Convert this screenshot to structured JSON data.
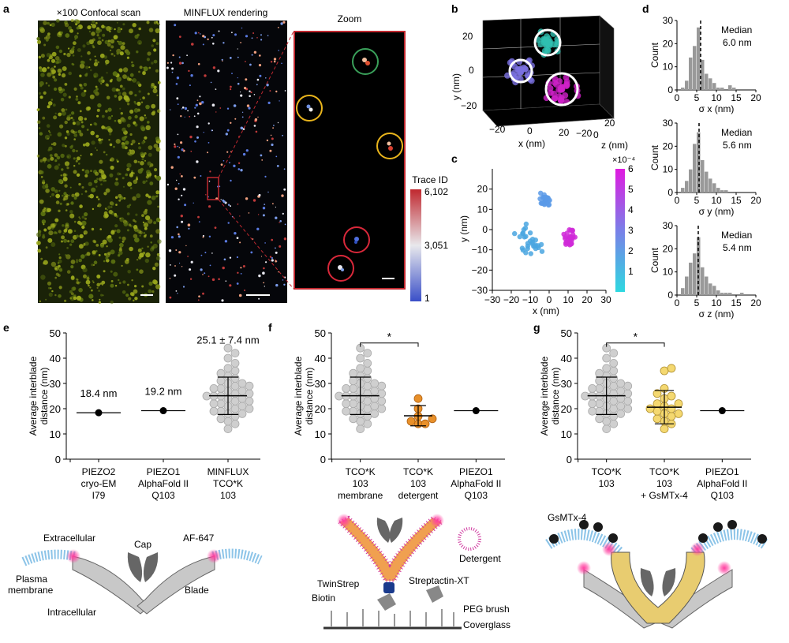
{
  "panel_letters": {
    "a": "a",
    "b": "b",
    "c": "c",
    "d": "d",
    "e": "e",
    "f": "f",
    "g": "g"
  },
  "panel_a": {
    "confocal_title": "×100 Confocal scan",
    "minflux_title": "MINFLUX rendering",
    "zoom_title": "Zoom",
    "colorbar_title": "Trace ID",
    "colorbar_ticks": [
      "6,102",
      "3,051",
      "1"
    ],
    "colors": {
      "confocal_bg": "#1a2208",
      "confocal_spot": "#9aa81c",
      "zoom_border": "#c0282f",
      "circle_green": "#3aa05a",
      "circle_yellow": "#e8b41c",
      "circle_red": "#d8283a"
    }
  },
  "panel_b": {
    "chart_data": {
      "type": "scatter",
      "title": "",
      "xlabel": "x (nm)",
      "ylabel": "y (nm)",
      "zlabel": "z (nm)",
      "x_ticks": [
        "−20",
        "0",
        "20"
      ],
      "y_ticks": [
        "20",
        "0",
        "−20"
      ],
      "z_ticks": [
        "20",
        "0",
        "−20"
      ],
      "clusters": [
        {
          "color": "#2fbfb0",
          "center": [
            5,
            15
          ]
        },
        {
          "color": "#7a70e0",
          "center": [
            -12,
            2
          ]
        },
        {
          "color": "#d020c8",
          "center": [
            10,
            -10
          ]
        }
      ]
    }
  },
  "panel_c": {
    "chart_data": {
      "type": "scatter",
      "xlabel": "x (nm)",
      "ylabel": "y (nm)",
      "xlim": [
        -30,
        30
      ],
      "ylim": [
        -30,
        30
      ],
      "x_ticks": [
        "−30",
        "−20",
        "−10",
        "0",
        "10",
        "20",
        "30"
      ],
      "y_ticks": [
        "20",
        "10",
        "0",
        "−10",
        "−20",
        "−30"
      ],
      "colorbar_exponent": "×10⁻⁴",
      "colorbar_ticks": [
        "6",
        "5",
        "4",
        "3",
        "2",
        "1"
      ],
      "clusters": [
        {
          "center": [
            -2,
            15
          ],
          "color": "#5a9ae8"
        },
        {
          "center": [
            -10,
            -6
          ],
          "color": "#4aa6e0"
        },
        {
          "center": [
            11,
            -4
          ],
          "color": "#d02ad8"
        }
      ]
    }
  },
  "panel_d": {
    "chart_data": [
      {
        "type": "bar",
        "xlabel": "σ x (nm)",
        "ylabel": "Count",
        "ylim": [
          0,
          30
        ],
        "xlim": [
          0,
          20
        ],
        "x_ticks": [
          "0",
          "5",
          "10",
          "15",
          "20"
        ],
        "y_ticks": [
          "30",
          "20",
          "10",
          "0"
        ],
        "median_label": "Median",
        "median_value": "6.0 nm",
        "median": 6.0,
        "values": [
          0,
          1,
          4,
          14,
          19,
          27,
          13,
          7,
          5,
          3,
          1,
          1,
          0,
          2,
          1,
          0,
          0,
          0,
          0,
          0
        ]
      },
      {
        "type": "bar",
        "xlabel": "σ y (nm)",
        "ylabel": "Count",
        "ylim": [
          0,
          30
        ],
        "xlim": [
          0,
          20
        ],
        "x_ticks": [
          "0",
          "5",
          "10",
          "15",
          "20"
        ],
        "y_ticks": [
          "30",
          "20",
          "10",
          "0"
        ],
        "median_label": "Median",
        "median_value": "5.6 nm",
        "median": 5.6,
        "values": [
          0,
          2,
          5,
          10,
          21,
          26,
          14,
          9,
          6,
          4,
          2,
          1,
          1,
          0,
          0,
          0,
          0,
          0,
          0,
          0
        ]
      },
      {
        "type": "bar",
        "xlabel": "σ z (nm)",
        "ylabel": "Count",
        "ylim": [
          0,
          30
        ],
        "xlim": [
          0,
          20
        ],
        "x_ticks": [
          "0",
          "5",
          "10",
          "15",
          "20"
        ],
        "y_ticks": [
          "30",
          "20",
          "10",
          "0"
        ],
        "median_label": "Median",
        "median_value": "5.4 nm",
        "median": 5.4,
        "values": [
          0,
          3,
          8,
          14,
          18,
          25,
          12,
          8,
          5,
          4,
          2,
          1,
          1,
          1,
          0,
          0,
          1,
          0,
          0,
          0
        ]
      }
    ]
  },
  "panel_e": {
    "chart_data": {
      "type": "scatter",
      "ylabel": "Average interblade distance (nm)",
      "ylim": [
        0,
        50
      ],
      "y_ticks": [
        "50",
        "40",
        "30",
        "20",
        "10",
        "0"
      ],
      "categories": [
        [
          "PIEZO2",
          "cryo-EM",
          "I79"
        ],
        [
          "PIEZO1",
          "AlphaFold II",
          "Q103"
        ],
        [
          "MINFLUX",
          "TCO*K",
          "103"
        ]
      ],
      "annotations": [
        "18.4 nm",
        "19.2 nm",
        "25.1 ± 7.4 nm"
      ],
      "single_values": [
        18.4,
        19.2
      ],
      "minflux_mean": 25.1,
      "minflux_sd": 7.4,
      "minflux_points": [
        12,
        14,
        15,
        16,
        17,
        18,
        18,
        19,
        19,
        20,
        20,
        21,
        21,
        22,
        22,
        23,
        23,
        24,
        24,
        25,
        25,
        25,
        26,
        26,
        27,
        27,
        28,
        28,
        29,
        29,
        30,
        30,
        31,
        32,
        33,
        34,
        35,
        36,
        38,
        40,
        42,
        44
      ]
    }
  },
  "panel_f": {
    "chart_data": {
      "type": "scatter",
      "ylabel": "Average interblade distance (nm)",
      "ylim": [
        0,
        50
      ],
      "y_ticks": [
        "50",
        "40",
        "30",
        "20",
        "10",
        "0"
      ],
      "categories": [
        [
          "TCO*K",
          "103",
          "membrane"
        ],
        [
          "TCO*K",
          "103",
          "detergent"
        ],
        [
          "PIEZO1",
          "AlphaFold II",
          "Q103"
        ]
      ],
      "significance": "*",
      "membrane_mean": 25.1,
      "membrane_sd": 7.4,
      "membrane_points": [
        12,
        14,
        15,
        16,
        17,
        18,
        18,
        19,
        19,
        20,
        20,
        21,
        21,
        22,
        22,
        23,
        23,
        24,
        24,
        25,
        25,
        25,
        26,
        26,
        27,
        27,
        28,
        28,
        29,
        29,
        30,
        30,
        31,
        32,
        33,
        34,
        35,
        36,
        38,
        40,
        42,
        44
      ],
      "detergent_mean": 17.2,
      "detergent_sd": 4.0,
      "detergent_points": [
        14,
        14,
        15,
        16,
        17,
        20,
        24
      ],
      "alphafold_value": 19.2,
      "schematic_labels": {
        "detergent": "Detergent",
        "twinstrep": "TwinStrep",
        "streptactin": "Streptactin-XT",
        "biotin": "Biotin",
        "peg": "PEG brush",
        "coverglass": "Coverglass"
      }
    }
  },
  "panel_g": {
    "chart_data": {
      "type": "scatter",
      "ylabel": "Average interblade distance (nm)",
      "ylim": [
        0,
        50
      ],
      "y_ticks": [
        "50",
        "40",
        "30",
        "20",
        "10",
        "0"
      ],
      "categories": [
        [
          "TCO*K",
          "103",
          ""
        ],
        [
          "TCO*K",
          "103",
          "+ GsMTx-4"
        ],
        [
          "PIEZO1",
          "AlphaFold II",
          "Q103"
        ]
      ],
      "significance": "*",
      "control_mean": 25.1,
      "control_sd": 7.4,
      "control_points": [
        12,
        14,
        15,
        16,
        17,
        18,
        18,
        19,
        19,
        20,
        20,
        21,
        21,
        22,
        22,
        23,
        23,
        24,
        24,
        25,
        25,
        25,
        26,
        26,
        27,
        27,
        28,
        28,
        29,
        29,
        30,
        30,
        31,
        32,
        33,
        34,
        35,
        36,
        38,
        40,
        42,
        44
      ],
      "gsmtx_mean": 20.6,
      "gsmtx_sd": 6.6,
      "gsmtx_points": [
        12,
        14,
        15,
        16,
        17,
        18,
        18,
        19,
        20,
        20,
        21,
        22,
        22,
        24,
        25,
        26,
        28,
        35,
        36
      ],
      "alphafold_value": 19.2,
      "schematic_label": "GsMTx-4"
    }
  },
  "schematic_e": {
    "extracellular": "Extracellular",
    "plasma1": "Plasma",
    "plasma2": "membrane",
    "intracellular": "Intracellular",
    "cap": "Cap",
    "blade": "Blade",
    "af": "AF-647"
  }
}
